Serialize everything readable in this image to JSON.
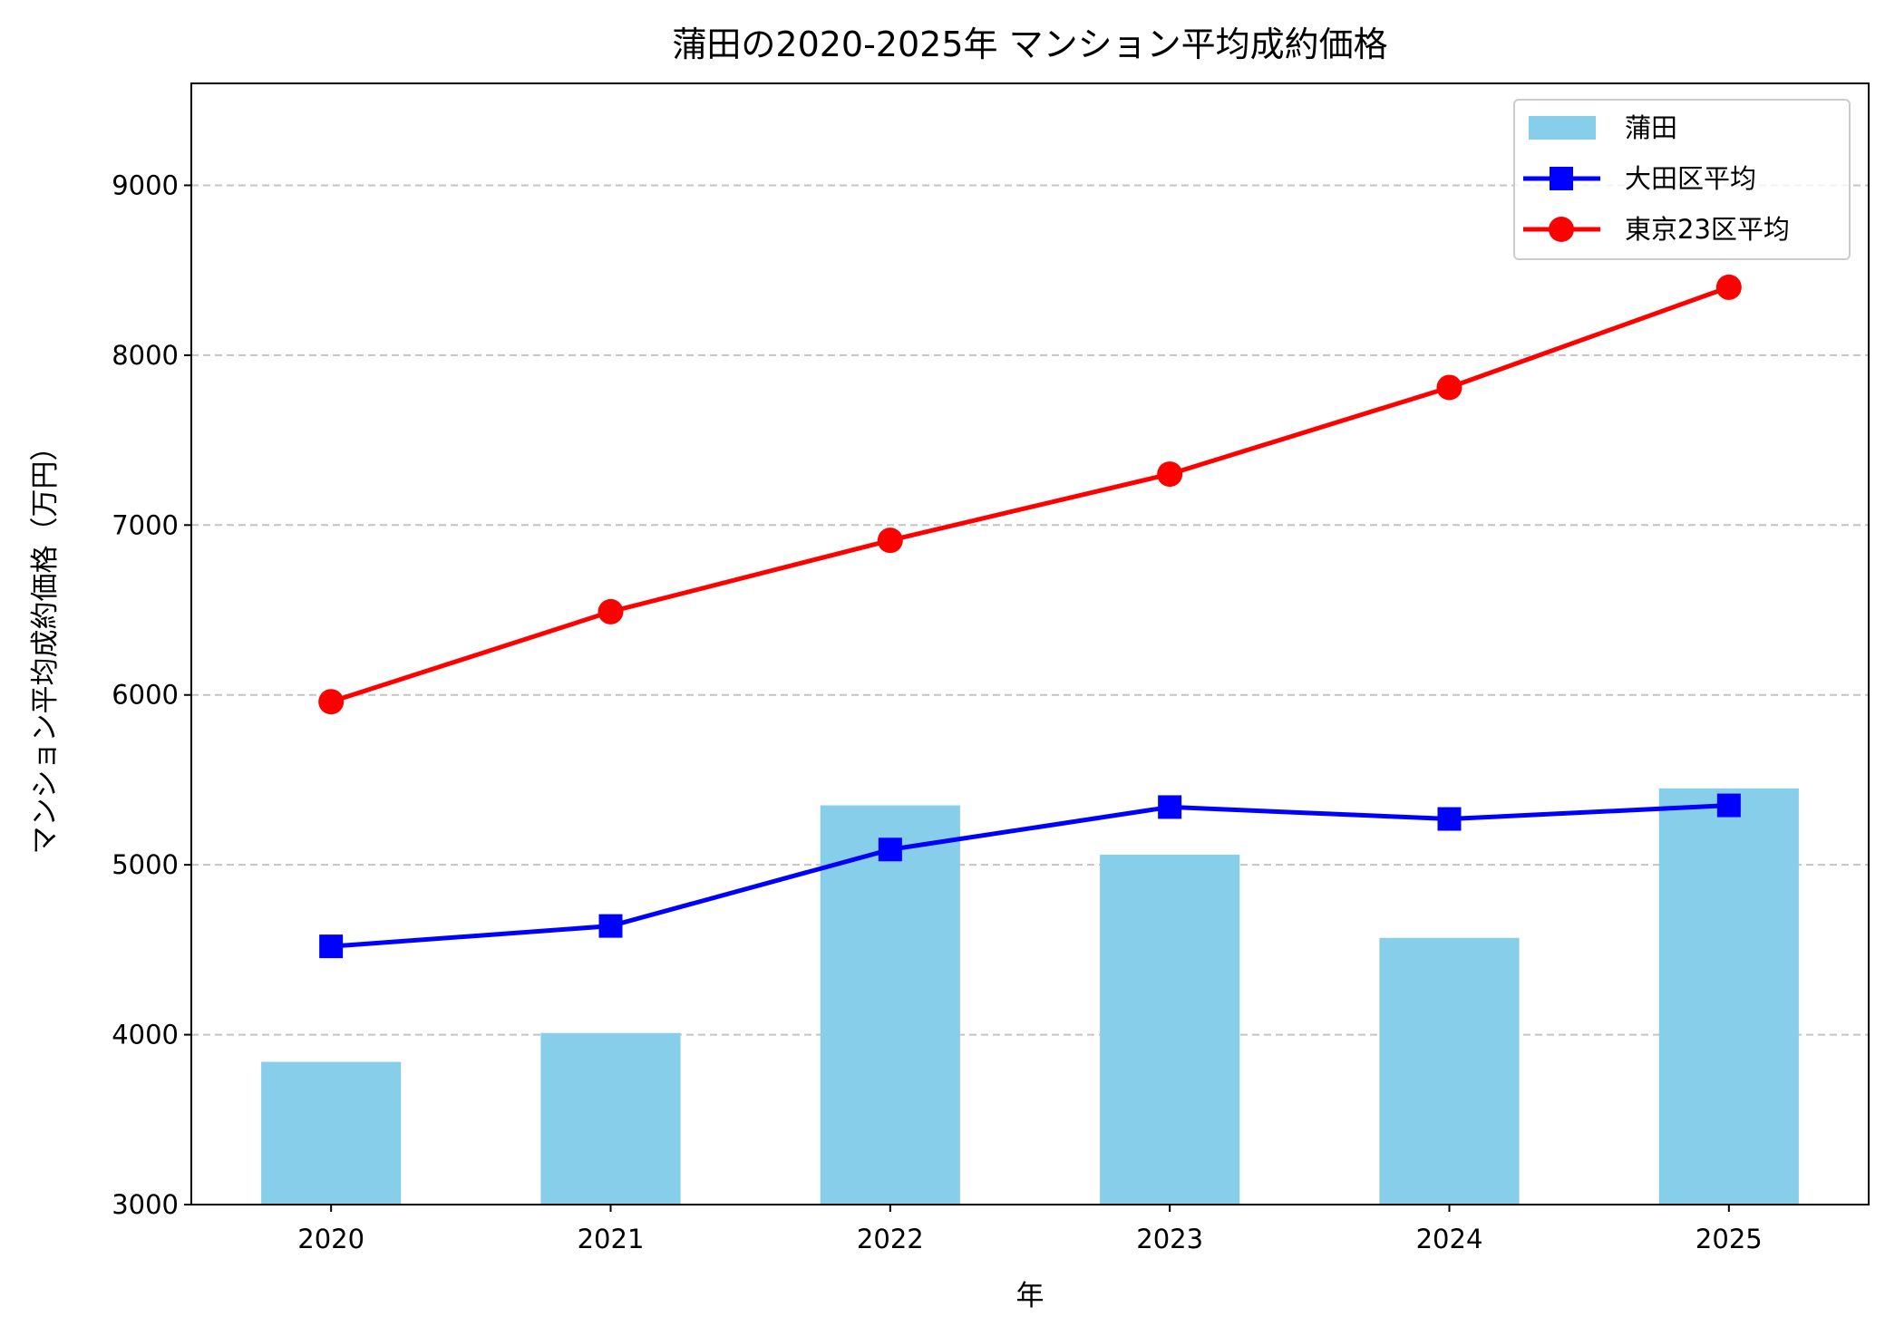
{
  "chart_data": {
    "type": "bar+line",
    "title": "蒲田の2020-2025年 マンション平均成約価格",
    "xlabel": "年",
    "ylabel": "マンション平均成約価格（万円）",
    "categories": [
      "2020",
      "2021",
      "2022",
      "2023",
      "2024",
      "2025"
    ],
    "ylim": [
      3000,
      9600
    ],
    "yticks": [
      3000,
      4000,
      5000,
      6000,
      7000,
      8000,
      9000
    ],
    "grid": "y-dashed",
    "legend_position": "top-right",
    "series": [
      {
        "name": "蒲田",
        "kind": "bar",
        "color": "#87CEEB",
        "values": [
          3840,
          4010,
          5350,
          5060,
          4570,
          5450
        ]
      },
      {
        "name": "大田区平均",
        "kind": "line",
        "marker": "square",
        "color": "#0000FF",
        "values": [
          4520,
          4640,
          5090,
          5340,
          5270,
          5350
        ]
      },
      {
        "name": "東京23区平均",
        "kind": "line",
        "marker": "circle",
        "color": "#FF0000",
        "values": [
          5960,
          6490,
          6910,
          7300,
          7810,
          8400
        ]
      }
    ]
  }
}
